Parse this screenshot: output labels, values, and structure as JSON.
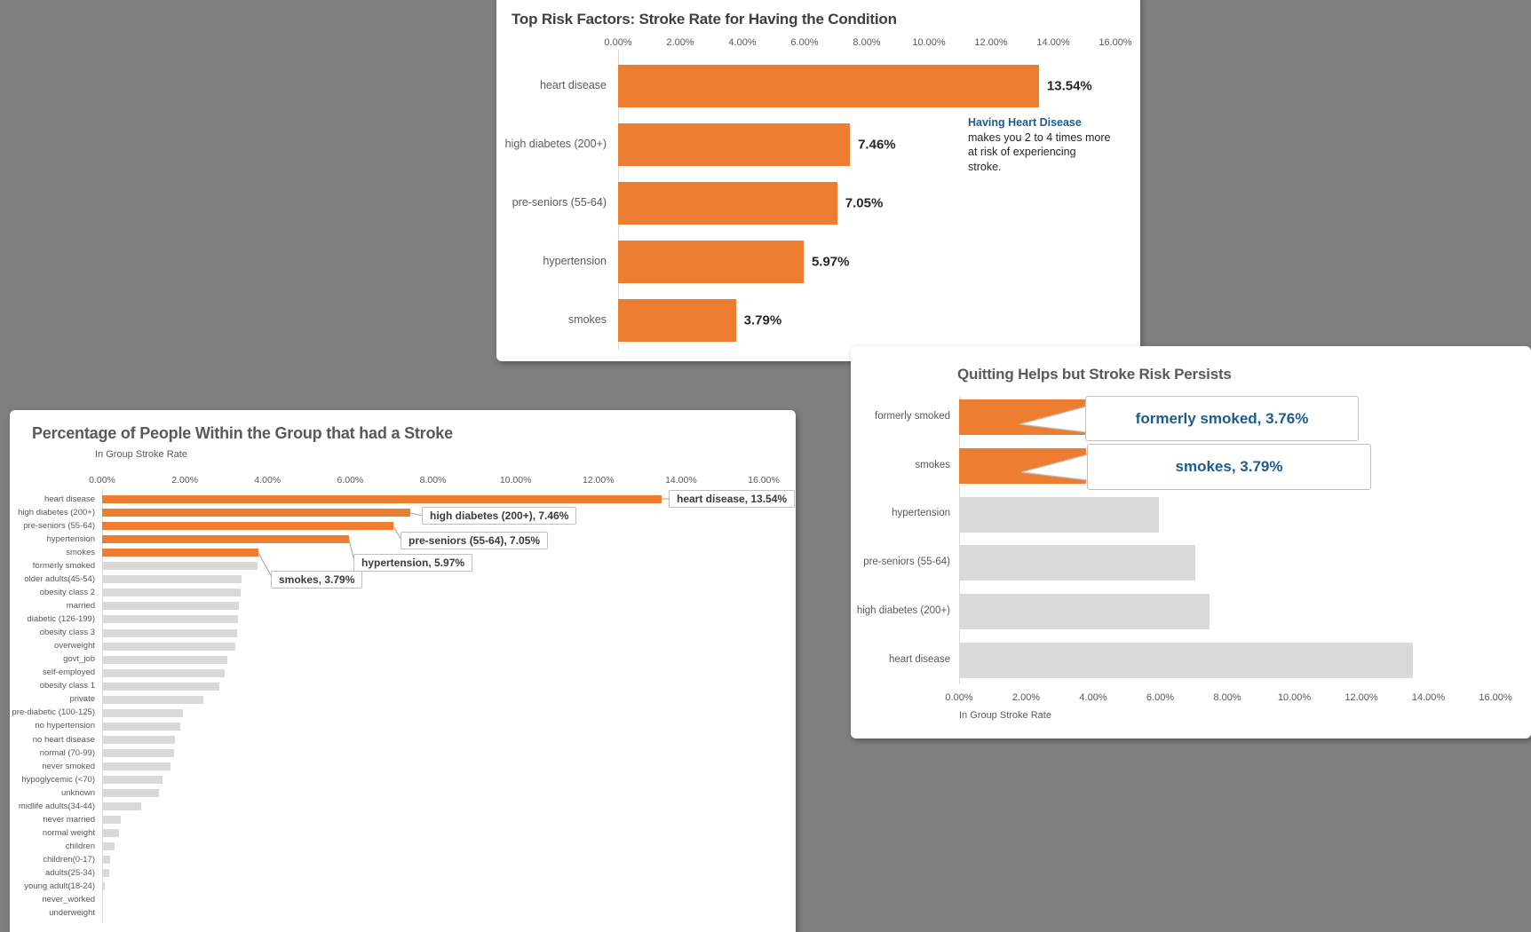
{
  "page": {
    "background_color": "#7f7f7f",
    "panel_color": "#ffffff"
  },
  "colors": {
    "highlight_orange": "#ED7D31",
    "base_gray": "#D9D9D9",
    "axis_text": "#595959",
    "value_text": "#262626",
    "callout_blue": "#1b5c8a",
    "leader_line": "#a6a6a6",
    "callout_border": "#bfbfbf"
  },
  "chart_data": [
    {
      "id": "top-risk-factors",
      "type": "bar",
      "orientation": "horizontal-bars",
      "title": "Top Risk Factors: Stroke Rate for Having the Condition",
      "categories": [
        "heart disease",
        "high diabetes (200+)",
        "pre-seniors (55-64)",
        "hypertension",
        "smokes"
      ],
      "values": [
        13.54,
        7.46,
        7.05,
        5.97,
        3.79
      ],
      "data_labels": [
        "13.54%",
        "7.46%",
        "7.05%",
        "5.97%",
        "3.79%"
      ],
      "xlabel": "",
      "xlim": [
        0,
        16
      ],
      "tick_labels": [
        "0.00%",
        "2.00%",
        "4.00%",
        "6.00%",
        "8.00%",
        "10.00%",
        "12.00%",
        "14.00%",
        "16.00%"
      ],
      "grid": false,
      "highlight_indices": [
        0,
        1,
        2,
        3,
        4
      ],
      "highlight_color": "#ED7D31",
      "base_color": "#D9D9D9",
      "annotation": {
        "heading": "Having Heart Disease",
        "body_lines": [
          "makes you 2 to 4 times more",
          "at risk of experiencing",
          "stroke."
        ]
      }
    },
    {
      "id": "group-stroke-rate",
      "type": "bar",
      "orientation": "horizontal-bars",
      "title": "Percentage of People Within the Group that had a Stroke",
      "xlabel": "In Group Stroke Rate",
      "xlim": [
        0,
        16
      ],
      "tick_labels": [
        "0.00%",
        "2.00%",
        "4.00%",
        "6.00%",
        "8.00%",
        "10.00%",
        "12.00%",
        "14.00%",
        "16.00%"
      ],
      "grid": false,
      "categories": [
        "heart disease",
        "high diabetes (200+)",
        "pre-seniors (55-64)",
        "hypertension",
        "smokes",
        "formerly smoked",
        "older adults(45-54)",
        "obesity class 2",
        "married",
        "diabetic (126-199)",
        "obesity class 3",
        "overweight",
        "govt_job",
        "self-employed",
        "obesity class 1",
        "private",
        "pre-diabetic (100-125)",
        "no hypertension",
        "no heart disease",
        "normal (70-99)",
        "never smoked",
        "hypoglycemic (<70)",
        "unknown",
        "midlife adults(34-44)",
        "never married",
        "normal weight",
        "children",
        "children(0-17)",
        "adults(25-34)",
        "young adult(18-24)",
        "never_worked",
        "underweight"
      ],
      "values": [
        13.54,
        7.46,
        7.05,
        5.97,
        3.79,
        3.76,
        3.37,
        3.36,
        3.31,
        3.29,
        3.26,
        3.22,
        3.03,
        2.96,
        2.84,
        2.44,
        1.96,
        1.89,
        1.77,
        1.73,
        1.65,
        1.47,
        1.37,
        0.95,
        0.45,
        0.4,
        0.31,
        0.19,
        0.17,
        0.07,
        0.02,
        0.01
      ],
      "highlight_indices": [
        0,
        1,
        2,
        3,
        4
      ],
      "highlight_color": "#ED7D31",
      "base_color": "#D9D9D9",
      "callouts": [
        {
          "text": "heart disease, 13.54%",
          "row": 0
        },
        {
          "text": "high diabetes (200+), 7.46%",
          "row": 1
        },
        {
          "text": "pre-seniors (55-64), 7.05%",
          "row": 2
        },
        {
          "text": "hypertension, 5.97%",
          "row": 3
        },
        {
          "text": "smokes, 3.79%",
          "row": 4
        }
      ]
    },
    {
      "id": "quitting-helps",
      "type": "bar",
      "orientation": "horizontal-bars",
      "title": "Quitting Helps but Stroke Risk Persists",
      "xlabel": "In Group Stroke Rate",
      "xlim": [
        0,
        16
      ],
      "tick_labels": [
        "0.00%",
        "2.00%",
        "4.00%",
        "6.00%",
        "8.00%",
        "10.00%",
        "12.00%",
        "14.00%",
        "16.00%"
      ],
      "grid": false,
      "categories": [
        "formerly smoked",
        "smokes",
        "hypertension",
        "pre-seniors (55-64)",
        "high diabetes (200+)",
        "heart disease"
      ],
      "values": [
        3.76,
        3.79,
        5.97,
        7.05,
        7.46,
        13.54
      ],
      "highlight_indices": [
        0,
        1
      ],
      "highlight_color": "#ED7D31",
      "base_color": "#D9D9D9",
      "callouts": [
        {
          "text": "formerly smoked, 3.76%",
          "row": 0
        },
        {
          "text": "smokes, 3.79%",
          "row": 1
        }
      ]
    }
  ]
}
